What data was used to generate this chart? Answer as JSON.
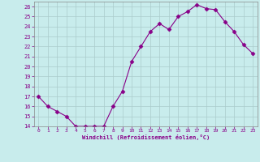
{
  "x": [
    0,
    1,
    2,
    3,
    4,
    5,
    6,
    7,
    8,
    9,
    10,
    11,
    12,
    13,
    14,
    15,
    16,
    17,
    18,
    19,
    20,
    21,
    22,
    23
  ],
  "y": [
    17,
    16,
    15.5,
    15,
    14,
    14,
    14,
    14,
    16,
    17.5,
    20.5,
    22,
    23.5,
    24.3,
    23.7,
    25,
    25.5,
    26.2,
    25.8,
    25.7,
    24.5,
    23.5,
    22.2,
    21.3
  ],
  "line_color": "#880088",
  "marker": "D",
  "marker_size": 2.5,
  "bg_color": "#c8ecec",
  "grid_color": "#aacccc",
  "xlabel": "Windchill (Refroidissement éolien,°C)",
  "xlabel_color": "#880088",
  "tick_color": "#880088",
  "ylim": [
    14,
    26.5
  ],
  "xlim": [
    -0.5,
    23.5
  ],
  "yticks": [
    14,
    15,
    16,
    17,
    18,
    19,
    20,
    21,
    22,
    23,
    24,
    25,
    26
  ],
  "xticks": [
    0,
    1,
    2,
    3,
    4,
    5,
    6,
    7,
    8,
    9,
    10,
    11,
    12,
    13,
    14,
    15,
    16,
    17,
    18,
    19,
    20,
    21,
    22,
    23
  ]
}
